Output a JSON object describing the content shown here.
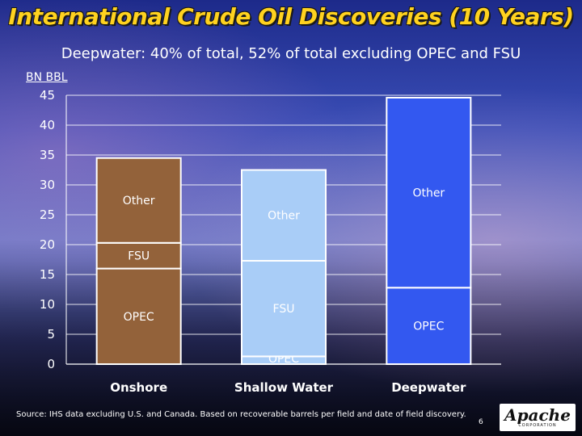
{
  "slide": {
    "title": "International Crude Oil Discoveries (10 Years)",
    "subtitle": "Deepwater: 40% of total, 52% of total excluding OPEC and FSU",
    "unit_label": "BN BBL",
    "source": "Source:  IHS data excluding U.S. and Canada. Based on recoverable barrels per field and date of field discovery.",
    "page_number": "6",
    "logo": {
      "word": "Apache",
      "sub": "CORPORATION"
    }
  },
  "chart_data": {
    "type": "bar",
    "stacked": true,
    "categories": [
      "Onshore",
      "Shallow Water",
      "Deepwater"
    ],
    "series": [
      {
        "name": "OPEC",
        "values": [
          16,
          1.3,
          12.8
        ]
      },
      {
        "name": "FSU",
        "values": [
          4.3,
          16,
          0
        ]
      },
      {
        "name": "Other",
        "values": [
          14.2,
          15.2,
          31.8
        ]
      }
    ],
    "ylim": [
      0,
      45
    ],
    "yticks": [
      0,
      5,
      10,
      15,
      20,
      25,
      30,
      35,
      40,
      45
    ],
    "grid": true,
    "colors": {
      "Onshore": "#93623a",
      "Shallow Water": "#a9cdf7",
      "Deepwater": "#3358f0",
      "gridline": "#ffffff",
      "segment_text_onshore": "#ffffff",
      "segment_text_shallow": "#ffffff",
      "segment_text_deep": "#ffffff"
    }
  }
}
